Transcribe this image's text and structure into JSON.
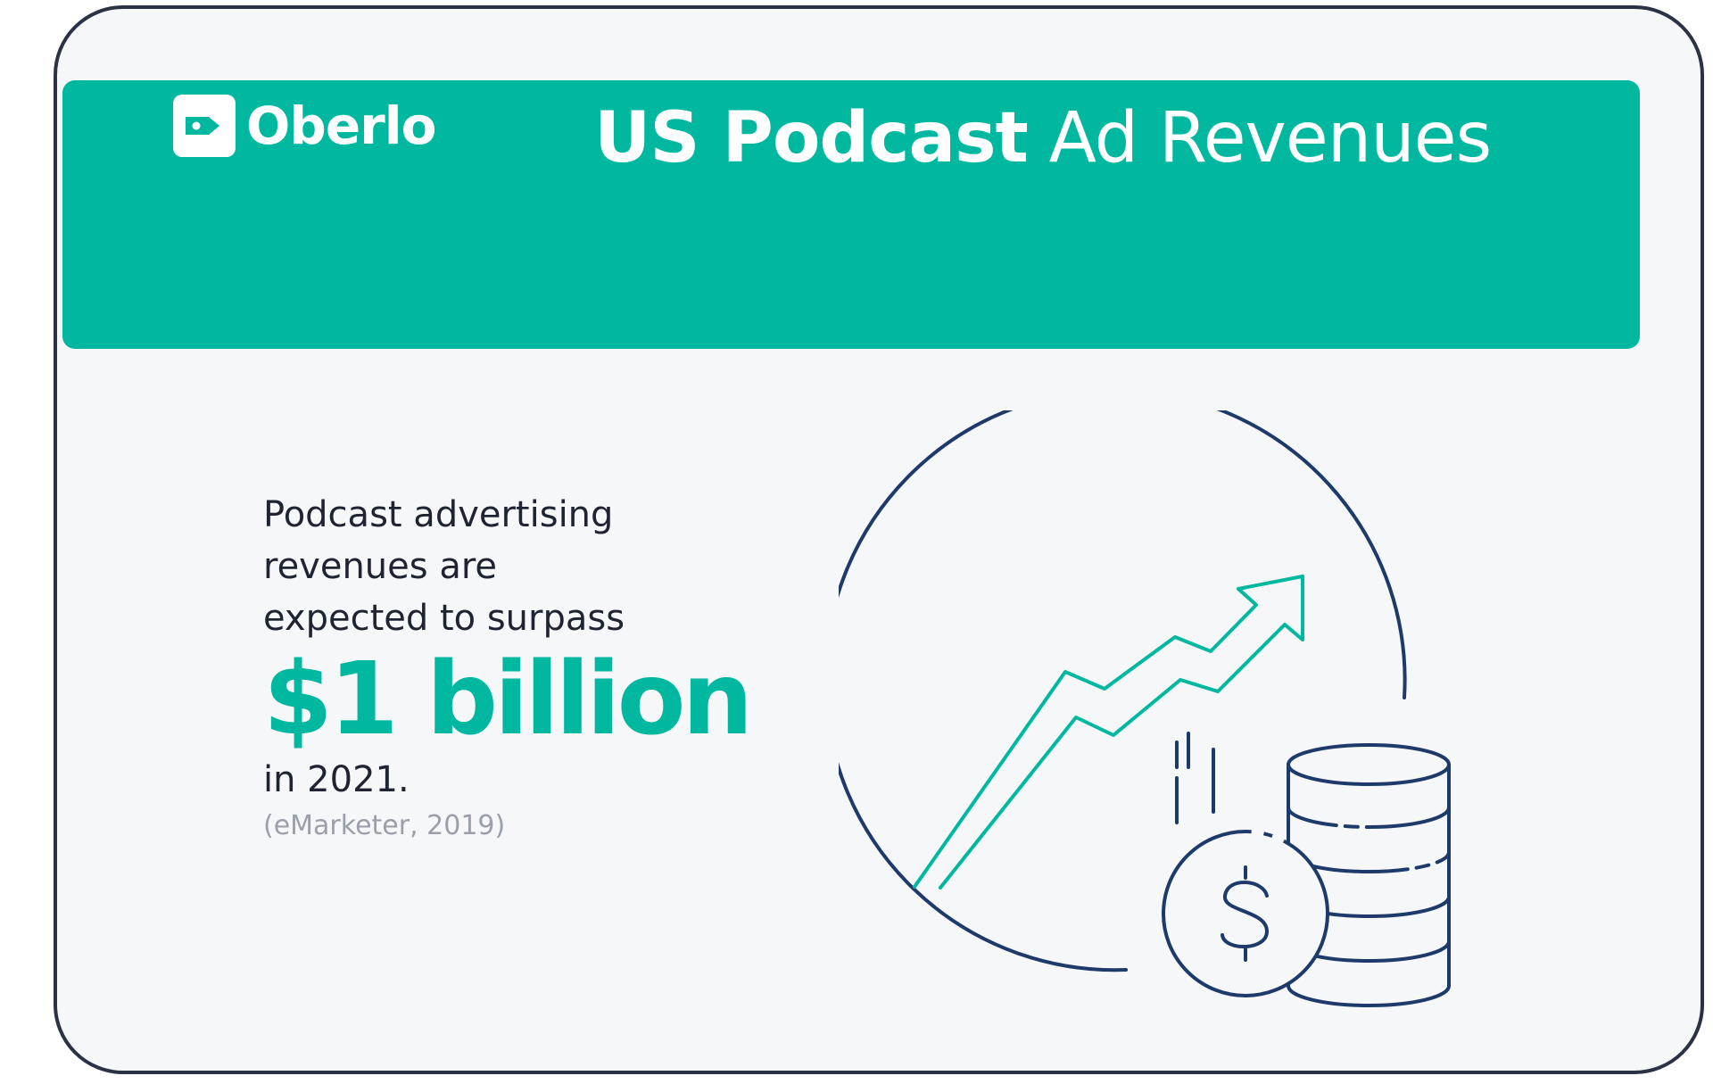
{
  "brand": {
    "name": "Oberlo",
    "logo_icon": "price-tag-icon"
  },
  "header": {
    "title_bold": "US Podcast",
    "title_light": "Ad Revenues"
  },
  "stat": {
    "lead_lines": [
      "Podcast advertising",
      "revenues are",
      "expected to surpass"
    ],
    "highlight": "$1 billion",
    "after": "in 2021.",
    "source": "(eMarketer, 2019)"
  },
  "illustration": {
    "icons": [
      "growth-arrow-icon",
      "coin-stack-icon",
      "dollar-coin-icon"
    ]
  },
  "colors": {
    "accent": "#00b89f",
    "navy": "#1e3a6b",
    "text": "#1f2433",
    "muted": "#9aa0aa",
    "background": "#f6f7f9"
  }
}
